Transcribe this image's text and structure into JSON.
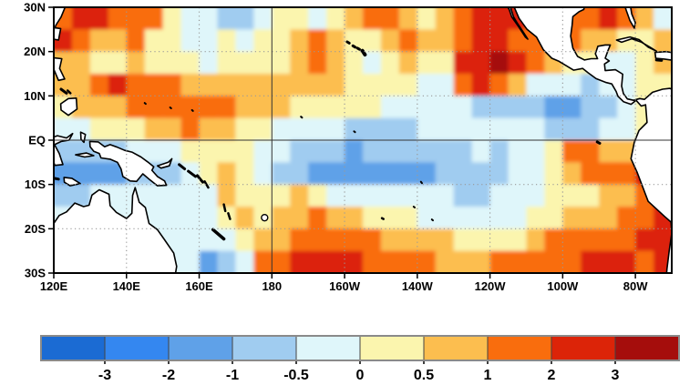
{
  "map": {
    "y_axis_labels": [
      "30N",
      "20N",
      "10N",
      "EQ",
      "10S",
      "20S",
      "30S"
    ],
    "y_axis_lats": [
      30,
      20,
      10,
      0,
      -10,
      -20,
      -30
    ],
    "x_axis_labels": [
      "120E",
      "140E",
      "160E",
      "180",
      "160W",
      "140W",
      "120W",
      "100W",
      "80W"
    ],
    "x_axis_lons_east": [
      120,
      140,
      160,
      180,
      200,
      220,
      240,
      260,
      280
    ],
    "solid_gridlines": {
      "lats": [
        0
      ],
      "lons_east": [
        180
      ]
    },
    "dotted_gridlines": {
      "lats": [
        20,
        10,
        -10,
        -20
      ],
      "lons_east": [
        140,
        160,
        200,
        220,
        240,
        260,
        280
      ]
    },
    "frame_color": "#000000",
    "grid_color": "#9a9a9a",
    "land_color": "#ffffff",
    "coast_color": "#000000"
  },
  "colorbar": {
    "tick_labels": [
      "-3",
      "-2",
      "-1",
      "-0.5",
      "0",
      "0.5",
      "1",
      "2",
      "3"
    ],
    "segment_colors": [
      "#1B6BD3",
      "#3487F0",
      "#5FA1E8",
      "#A0CCF0",
      "#DFF6FA",
      "#FBF5AE",
      "#FCBE4F",
      "#F96D0D",
      "#DC2408",
      "#A50D0C"
    ],
    "border_color": "#8a8a8a",
    "label_color": "#000000"
  },
  "chart_data": {
    "type": "heatmap",
    "title": "",
    "xlabel": "",
    "ylabel": "",
    "x_tick_labels": [
      "120E",
      "140E",
      "160E",
      "180",
      "160W",
      "140W",
      "120W",
      "100W",
      "80W"
    ],
    "y_tick_labels": [
      "30N",
      "20N",
      "10N",
      "EQ",
      "10S",
      "20S",
      "30S"
    ],
    "lon_range_deg_east": [
      120,
      290
    ],
    "lat_range": [
      -30,
      30
    ],
    "legend_position": "bottom",
    "bin_edges": [
      -3,
      -2,
      -1,
      -0.5,
      0,
      0.5,
      1,
      2,
      3
    ],
    "bin_labels": [
      "< -3",
      "-3 to -2",
      "-2 to -1",
      "-1 to -0.5",
      "-0.5 to 0",
      "0 to 0.5",
      "0.5 to 1",
      "1 to 2",
      "2 to 3",
      "> 3"
    ],
    "bin_representative_values": [
      -3.5,
      -2.5,
      -1.5,
      -0.75,
      -0.25,
      0.25,
      0.75,
      1.5,
      2.5,
      3.5
    ],
    "bin_colors": [
      "#1B6BD3",
      "#3487F0",
      "#5FA1E8",
      "#A0CCF0",
      "#DFF6FA",
      "#FBF5AE",
      "#FCBE4F",
      "#F96D0D",
      "#DC2408",
      "#A50D0C"
    ],
    "grid": {
      "lon_start_deg_east": 120,
      "lon_step_deg": 5,
      "lat_start_deg_north": 30,
      "lat_step_deg": -5,
      "n_lon": 34,
      "n_lat": 12,
      "note": "each char is a bin index 0-9 into bin_colors; rows run 30N..30S, cols 120E..70W",
      "rows": [
        "7887775443345545677656788877778764",
        "8766755445455676556766788777766556",
        "6655655545555676545655889876554456",
        "6678777666666666555544787644434455",
        "5666777777666555554444433332233454",
        "4455566766554444333344444443334455",
        "3333444555544333233333343445776666",
        "2222333456543322222223333445677788",
        "3344444446555654444444334445556678",
        "4444444445656676655544444455666778",
        "4444444444566777776666555567777788",
        "4444444423477888877776667777788878"
      ]
    }
  }
}
